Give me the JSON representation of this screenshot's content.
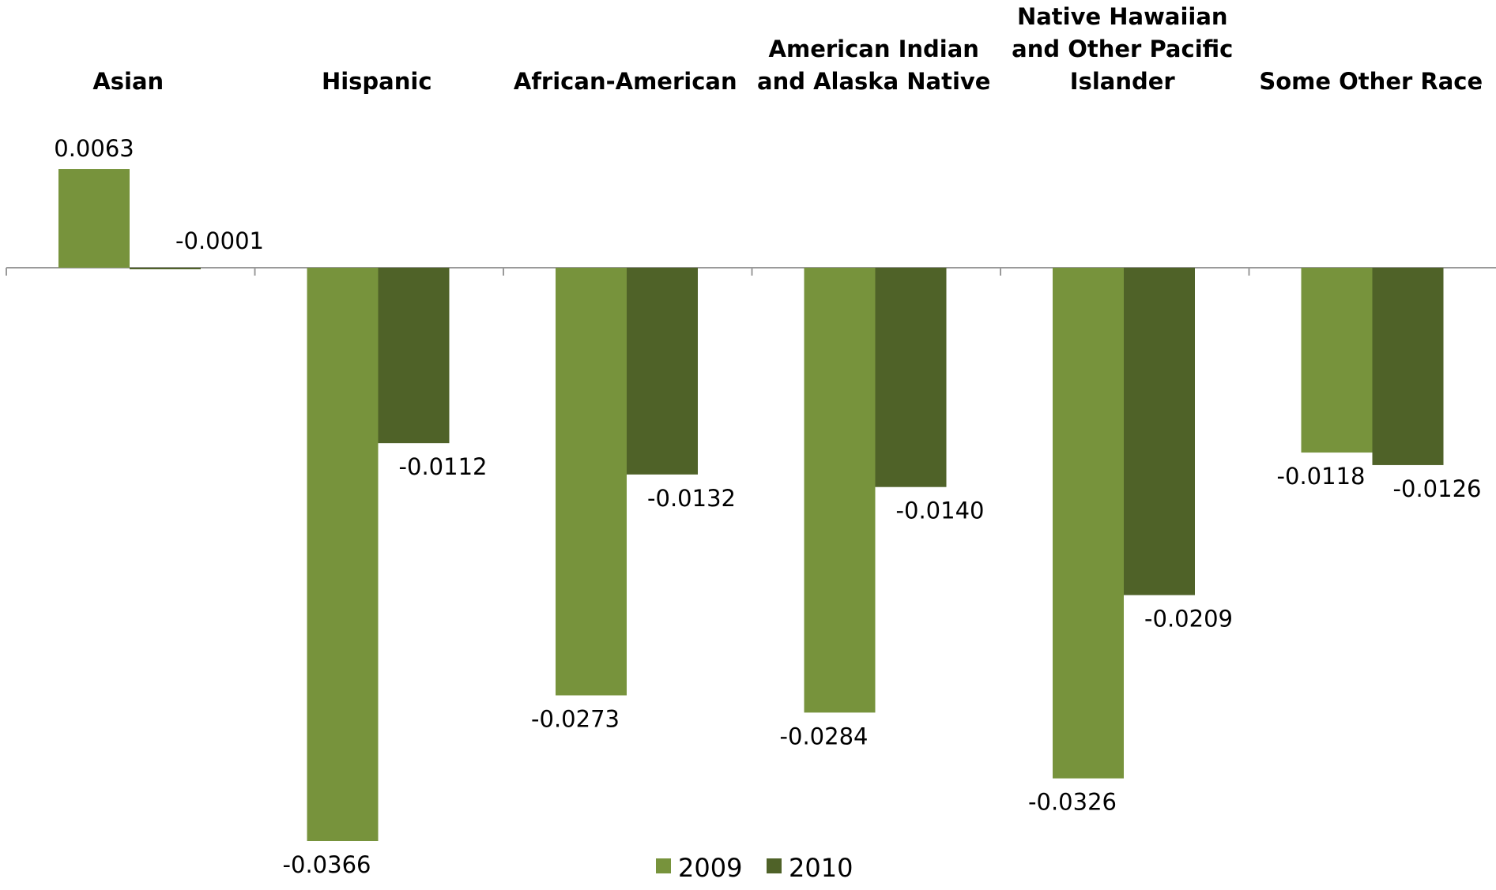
{
  "chart_data": {
    "type": "bar",
    "categories": [
      [
        "Asian"
      ],
      [
        "Hispanic"
      ],
      [
        "African-American"
      ],
      [
        "American Indian",
        "and Alaska Native"
      ],
      [
        "Native Hawaiian",
        "and Other Pacific",
        "Islander"
      ],
      [
        "Some Other Race"
      ]
    ],
    "series": [
      {
        "name": "2009",
        "color": "#77933c",
        "values": [
          0.0063,
          -0.0366,
          -0.0273,
          -0.0284,
          -0.0326,
          -0.0118
        ],
        "labels": [
          "0.0063",
          "-0.0366",
          "-0.0273",
          "-0.0284",
          "-0.0326",
          "-0.0118"
        ]
      },
      {
        "name": "2010",
        "color": "#4f6228",
        "values": [
          -0.0001,
          -0.0112,
          -0.0132,
          -0.014,
          -0.0209,
          -0.0126
        ],
        "labels": [
          "-0.0001",
          "-0.0112",
          "-0.0132",
          "-0.0140",
          "-0.0209",
          "-0.0126"
        ]
      }
    ],
    "ylim": [
      -0.0366,
      0.0063
    ],
    "grid": false,
    "legend_position": "bottom",
    "title": "",
    "xlabel": "",
    "ylabel": ""
  }
}
